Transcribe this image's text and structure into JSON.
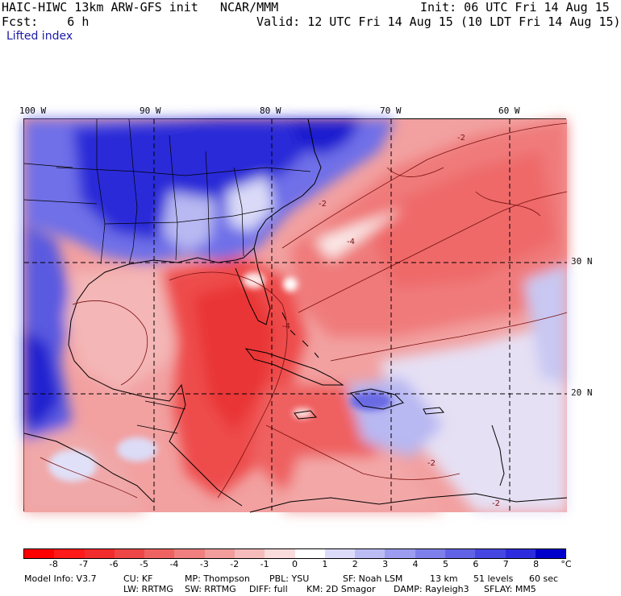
{
  "header": {
    "title": "HAIC-HIWC 13km ARW-GFS init   NCAR/MMM",
    "init": "Init: 06 UTC Fri 14 Aug 15",
    "fcst": "Fcst:    6 h",
    "valid": "Valid: 12 UTC Fri 14 Aug 15 (10 LDT Fri 14 Aug 15)",
    "field": "Lifted index"
  },
  "map": {
    "longitude_labels": [
      "100 W",
      "90 W",
      "80 W",
      "70 W",
      "60 W"
    ],
    "latitude_labels": [
      "30 N",
      "20 N"
    ],
    "contour_labels": [
      "-2",
      "-2",
      "-4",
      "-4",
      "-2",
      "-2"
    ]
  },
  "colorbar": {
    "labels": [
      "-8",
      "-7",
      "-6",
      "-5",
      "-4",
      "-3",
      "-2",
      "-1",
      "0",
      "1",
      "2",
      "3",
      "4",
      "5",
      "6",
      "7",
      "8"
    ],
    "unit": "°C",
    "colors": [
      "#ff0000",
      "#ff1a1a",
      "#f22c2c",
      "#ee4646",
      "#ef6262",
      "#f07f7f",
      "#f29c9c",
      "#f6bcbc",
      "#fadcdc",
      "#ffffff",
      "#dcdcfa",
      "#bcbcf5",
      "#9c9cf0",
      "#7f7feb",
      "#6262e6",
      "#4646e1",
      "#2c2cdc",
      "#0000cc"
    ]
  },
  "footer": {
    "line1": [
      "Model Info: V3.7",
      "CU: KF",
      "MP: Thompson",
      "PBL: YSU",
      "SF: Noah LSM",
      "13 km",
      "51 levels",
      "60 sec"
    ],
    "line2": [
      "LW: RRTMG",
      "SW: RRTMG",
      "DIFF: full",
      "KM: 2D Smagor",
      "DAMP: Rayleigh3",
      "SFLAY: MM5"
    ]
  }
}
